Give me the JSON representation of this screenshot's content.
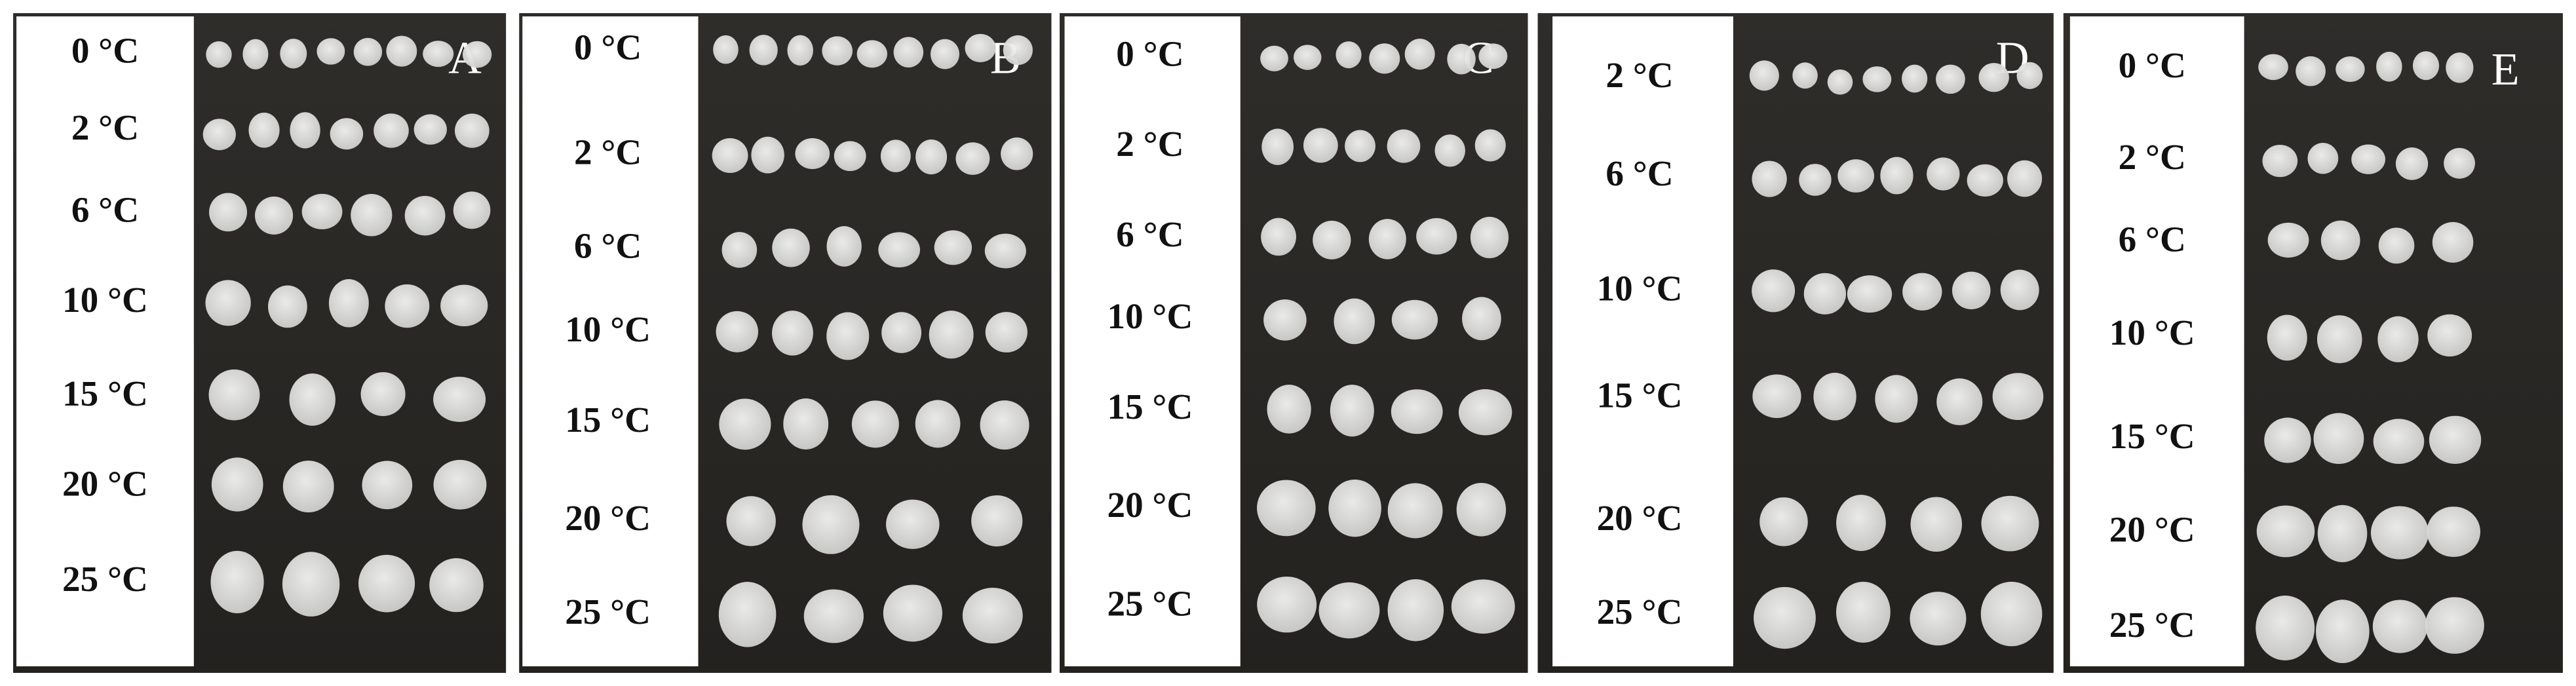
{
  "panels": [
    {
      "letter": "A",
      "labels": [
        "0 °C",
        "2 °C",
        "6 °C",
        "10 °C",
        "15 °C",
        "20 °C",
        "25 °C"
      ]
    },
    {
      "letter": "B",
      "labels": [
        "0 °C",
        "2 °C",
        "6 °C",
        "10 °C",
        "15 °C",
        "20 °C",
        "25 °C"
      ]
    },
    {
      "letter": "C",
      "labels": [
        "0 °C",
        "2 °C",
        "6 °C",
        "10 °C",
        "15 °C",
        "20 °C",
        "25 °C"
      ]
    },
    {
      "letter": "D",
      "labels": [
        "2 °C",
        "6 °C",
        "10 °C",
        "15 °C",
        "20 °C",
        "25 °C"
      ]
    },
    {
      "letter": "E",
      "labels": [
        "0 °C",
        "2 °C",
        "6 °C",
        "10 °C",
        "15 °C",
        "20 °C",
        "25 °C"
      ]
    }
  ]
}
